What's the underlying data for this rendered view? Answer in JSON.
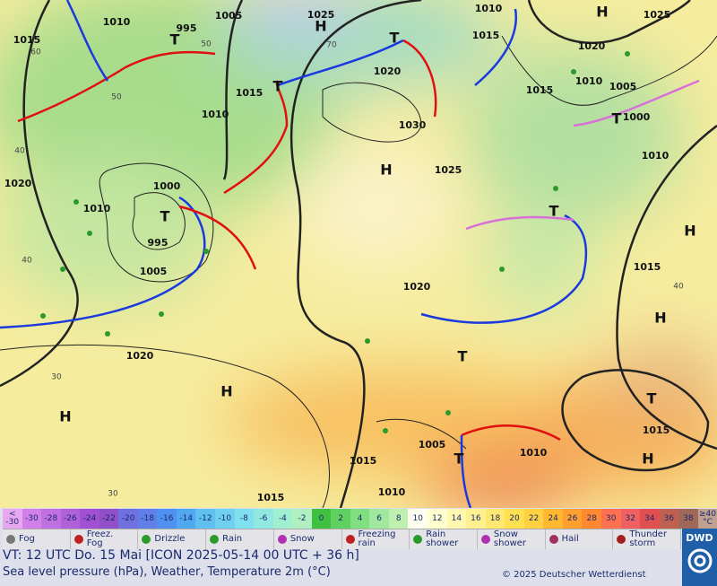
{
  "map": {
    "pressure_labels": [
      "1010",
      "1005",
      "1025",
      "1010",
      "1025",
      "1015",
      "995",
      "1020",
      "1015",
      "1020",
      "1015",
      "1010",
      "1030",
      "1015",
      "1005",
      "1010",
      "1000",
      "1010",
      "1025",
      "1020",
      "1000",
      "1010",
      "995",
      "1005",
      "1020",
      "1015",
      "1020",
      "1015",
      "1005",
      "1010",
      "1015",
      "1010",
      "1015"
    ],
    "centers": [
      "H",
      "T",
      "T",
      "T",
      "H",
      "T",
      "H",
      "T",
      "T",
      "H",
      "H",
      "T",
      "H",
      "H",
      "T",
      "H",
      "T"
    ],
    "isotherm_labels": [
      "60",
      "50",
      "50",
      "70",
      "40",
      "40",
      "30",
      "30",
      "40"
    ]
  },
  "scale": {
    "below_top": "<",
    "below": "-30",
    "values": [
      -30,
      -28,
      -26,
      -24,
      -22,
      -20,
      -18,
      -16,
      -14,
      -12,
      -10,
      -8,
      -6,
      -4,
      -2,
      0,
      2,
      4,
      6,
      8,
      10,
      12,
      14,
      16,
      18,
      20,
      22,
      24,
      26,
      28,
      30,
      32,
      34,
      36,
      38
    ],
    "above": "≥40",
    "unit": "°C"
  },
  "legend": [
    "Fog",
    "Freez.\nFog",
    "Drizzle",
    "Rain",
    "Snow",
    "Freezing\nrain",
    "Rain\nshower",
    "Snow\nshower",
    "Hail",
    "Thunder\nstorm"
  ],
  "info": {
    "valid_time": "VT: 12 UTC Do.  15 Mai [ICON 2025-05-14  00 UTC + 36 h]",
    "description": "Sea level pressure (hPa), Weather, Temperature 2m (°C)",
    "copyright": "© 2025 Deutscher Wetterdienst",
    "logo": "DWD"
  }
}
